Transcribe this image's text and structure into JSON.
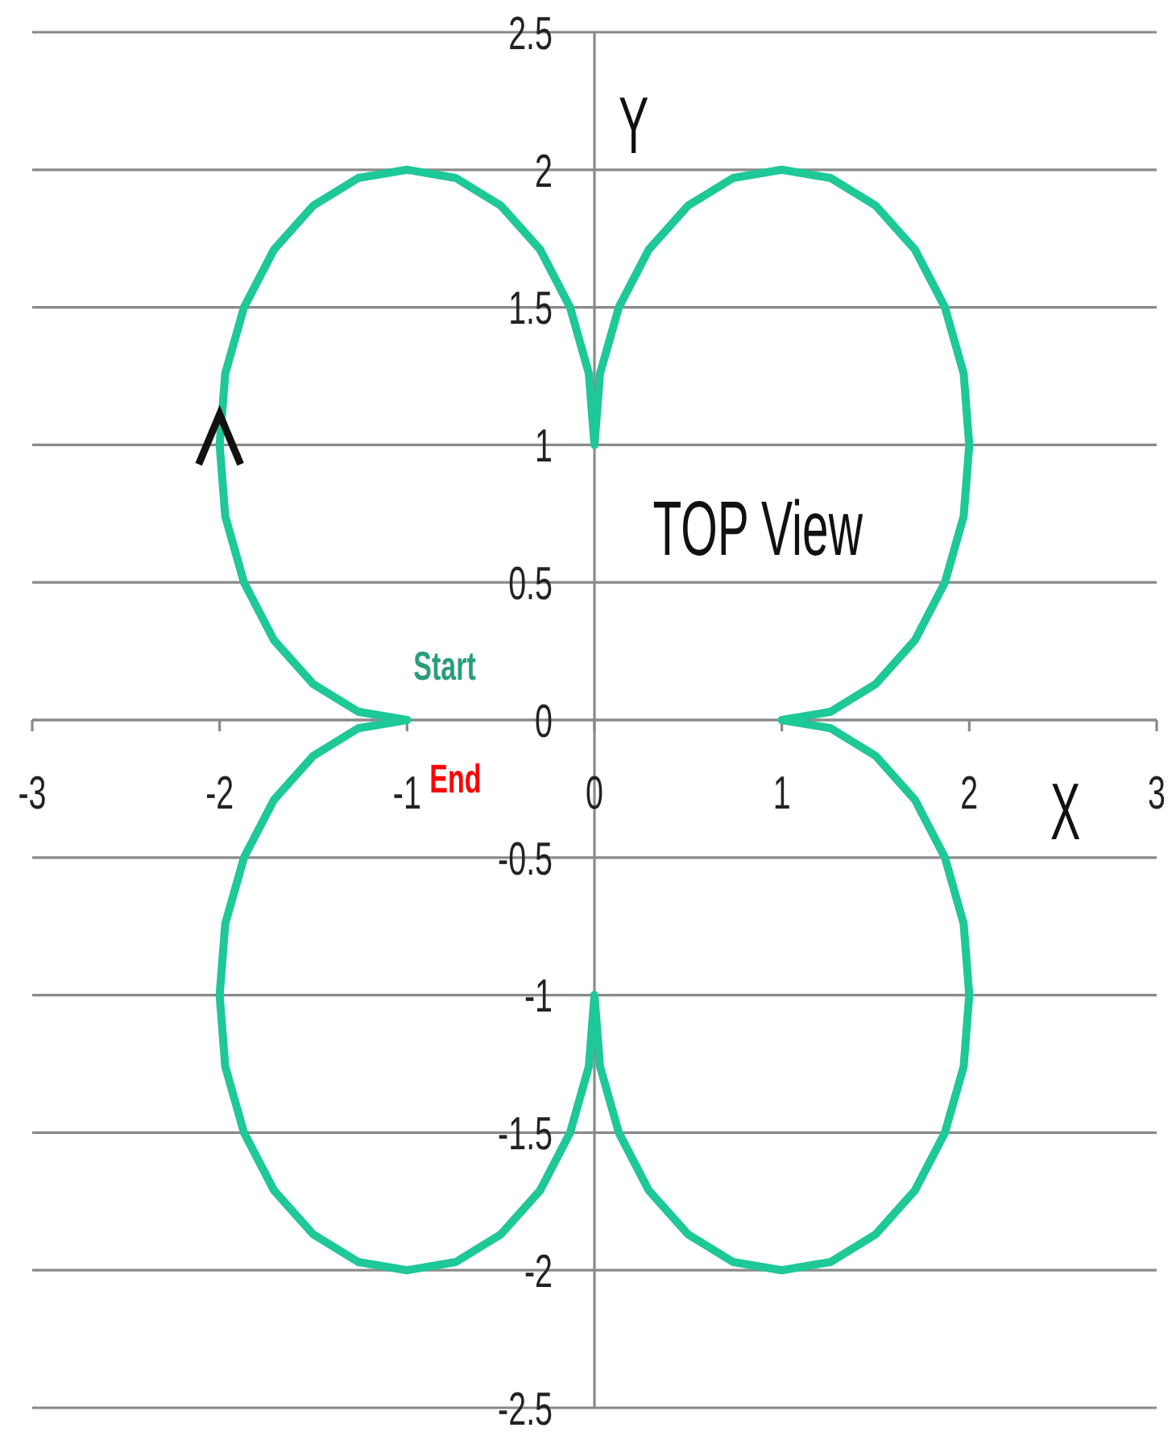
{
  "chart_data": {
    "type": "line",
    "title": "TOP View",
    "xlabel": "X",
    "ylabel": "Y",
    "series": [
      {
        "color": "#1ec897",
        "x": [
          -1,
          -1.26,
          -1.5,
          -1.71,
          -1.87,
          -1.97,
          -2,
          -1.97,
          -1.87,
          -1.71,
          -1.5,
          -1.26,
          -1,
          -0.74,
          -0.5,
          -0.29,
          -0.13,
          -0.03,
          0,
          0.03,
          0.13,
          0.29,
          0.5,
          0.74,
          1,
          1.26,
          1.5,
          1.71,
          1.87,
          1.97,
          2,
          1.97,
          1.87,
          1.71,
          1.5,
          1.26,
          1
        ],
        "values": [
          0,
          0.03,
          0.13,
          0.29,
          0.5,
          0.74,
          1,
          1.26,
          1.5,
          1.71,
          1.87,
          1.97,
          2,
          1.97,
          1.87,
          1.71,
          1.5,
          1.26,
          1,
          1.26,
          1.5,
          1.71,
          1.87,
          1.97,
          2,
          1.97,
          1.87,
          1.71,
          1.5,
          1.26,
          1,
          0.74,
          0.5,
          0.29,
          0.13,
          0.03,
          0
        ]
      },
      {
        "color": "#1ec897",
        "x": [
          1,
          1.26,
          1.5,
          1.71,
          1.87,
          1.97,
          2,
          1.97,
          1.87,
          1.71,
          1.5,
          1.26,
          1,
          0.74,
          0.5,
          0.29,
          0.13,
          0.03,
          0,
          -0.03,
          -0.13,
          -0.29,
          -0.5,
          -0.74,
          -1,
          -1.26,
          -1.5,
          -1.71,
          -1.87,
          -1.97,
          -2,
          -1.97,
          -1.87,
          -1.71,
          -1.5,
          -1.26,
          -1
        ],
        "values": [
          0,
          -0.03,
          -0.13,
          -0.29,
          -0.5,
          -0.74,
          -1,
          -1.26,
          -1.5,
          -1.71,
          -1.87,
          -1.97,
          -2,
          -1.97,
          -1.87,
          -1.71,
          -1.5,
          -1.26,
          -1,
          -1.26,
          -1.5,
          -1.71,
          -1.87,
          -1.97,
          -2,
          -1.97,
          -1.87,
          -1.71,
          -1.5,
          -1.26,
          -1,
          -0.74,
          -0.5,
          -0.29,
          -0.13,
          -0.03,
          0
        ]
      }
    ],
    "xlim": [
      -3,
      3
    ],
    "ylim": [
      -2.5,
      2.5
    ],
    "xticks": [
      -3,
      -2,
      -1,
      0,
      1,
      2,
      3
    ],
    "yticks": [
      -2.5,
      -2,
      -1.5,
      -1,
      -0.5,
      0,
      0.5,
      1,
      1.5,
      2,
      2.5
    ],
    "grid": "y",
    "line_style": "solid",
    "annotations": [
      {
        "text": "Start",
        "x": -1,
        "y": 0
      },
      {
        "text": "End",
        "x": -1,
        "y": 0
      }
    ]
  }
}
